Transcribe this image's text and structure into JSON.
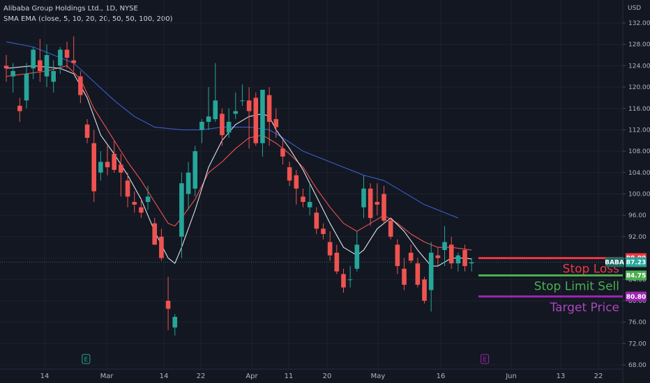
{
  "legend": {
    "symbol_line": "Alibaba Group Holdings Ltd., 1D, NYSE",
    "indicator_line": "SMA EMA (close, 5, 10, 20, 20, 50, 50, 100, 200)"
  },
  "currency": "USD",
  "chart_data": {
    "type": "candlestick",
    "title": "Alibaba Group Holdings Ltd., 1D, NYSE",
    "ylim": [
      68,
      136
    ],
    "y_ticks": [
      68,
      72,
      76,
      80,
      84,
      88,
      92,
      96,
      100,
      104,
      108,
      112,
      116,
      120,
      124,
      128,
      132
    ],
    "x_ticks": [
      {
        "label": "14",
        "date": "2022-02-14"
      },
      {
        "label": "Mar",
        "date": "2022-03-01"
      },
      {
        "label": "14",
        "date": "2022-03-14"
      },
      {
        "label": "22",
        "date": "2022-03-22"
      },
      {
        "label": "Apr",
        "date": "2022-04-01"
      },
      {
        "label": "11",
        "date": "2022-04-11"
      },
      {
        "label": "20",
        "date": "2022-04-20"
      },
      {
        "label": "May",
        "date": "2022-05-02"
      },
      {
        "label": "16",
        "date": "2022-05-16"
      },
      {
        "label": "Jun",
        "date": "2022-06-01"
      },
      {
        "label": "13",
        "date": "2022-06-13"
      },
      {
        "label": "22",
        "date": "2022-06-22"
      }
    ],
    "candles": [
      {
        "o": 124.0,
        "h": 126.0,
        "l": 121.0,
        "c": 123.5
      },
      {
        "o": 122.0,
        "h": 124.5,
        "l": 119.0,
        "c": 123.0
      },
      {
        "o": 116.5,
        "h": 118.0,
        "l": 113.5,
        "c": 115.5
      },
      {
        "o": 117.5,
        "h": 124.5,
        "l": 116.0,
        "c": 122.5
      },
      {
        "o": 123.5,
        "h": 127.5,
        "l": 121.5,
        "c": 127.0
      },
      {
        "o": 125.0,
        "h": 129.0,
        "l": 121.0,
        "c": 123.0
      },
      {
        "o": 122.0,
        "h": 128.0,
        "l": 120.0,
        "c": 126.0
      },
      {
        "o": 121.0,
        "h": 125.0,
        "l": 119.0,
        "c": 123.0
      },
      {
        "o": 124.0,
        "h": 127.5,
        "l": 122.5,
        "c": 127.0
      },
      {
        "o": 127.0,
        "h": 128.5,
        "l": 123.5,
        "c": 125.5
      },
      {
        "o": 125.0,
        "h": 129.5,
        "l": 123.0,
        "c": 124.5
      },
      {
        "o": 122.0,
        "h": 123.0,
        "l": 117.0,
        "c": 118.5
      },
      {
        "o": 113.0,
        "h": 114.0,
        "l": 109.5,
        "c": 110.5
      },
      {
        "o": 109.5,
        "h": 112.0,
        "l": 98.5,
        "c": 100.5
      },
      {
        "o": 104.0,
        "h": 108.0,
        "l": 102.5,
        "c": 106.0
      },
      {
        "o": 106.0,
        "h": 109.0,
        "l": 103.5,
        "c": 105.0
      },
      {
        "o": 107.5,
        "h": 110.0,
        "l": 104.0,
        "c": 104.5
      },
      {
        "o": 105.5,
        "h": 107.5,
        "l": 99.5,
        "c": 104.0
      },
      {
        "o": 102.5,
        "h": 104.0,
        "l": 97.5,
        "c": 99.5
      },
      {
        "o": 98.5,
        "h": 100.5,
        "l": 96.5,
        "c": 98.0
      },
      {
        "o": 97.5,
        "h": 99.0,
        "l": 95.5,
        "c": 96.5
      },
      {
        "o": 98.5,
        "h": 101.5,
        "l": 97.0,
        "c": 99.5
      },
      {
        "o": 94.5,
        "h": 95.5,
        "l": 90.5,
        "c": 90.5
      },
      {
        "o": 92.0,
        "h": 93.5,
        "l": 87.5,
        "c": 88.0
      },
      {
        "o": 80.0,
        "h": 84.5,
        "l": 74.5,
        "c": 78.5
      },
      {
        "o": 75.0,
        "h": 77.5,
        "l": 73.5,
        "c": 77.0
      },
      {
        "o": 92.0,
        "h": 104.0,
        "l": 88.0,
        "c": 102.0
      },
      {
        "o": 100.0,
        "h": 106.0,
        "l": 97.0,
        "c": 104.0
      },
      {
        "o": 101.0,
        "h": 109.0,
        "l": 99.5,
        "c": 108.0
      },
      {
        "o": 112.0,
        "h": 114.0,
        "l": 109.5,
        "c": 113.5
      },
      {
        "o": 113.5,
        "h": 120.0,
        "l": 112.0,
        "c": 114.5
      },
      {
        "o": 114.0,
        "h": 124.5,
        "l": 113.5,
        "c": 117.5
      },
      {
        "o": 115.0,
        "h": 116.0,
        "l": 109.0,
        "c": 111.0
      },
      {
        "o": 111.5,
        "h": 116.0,
        "l": 110.5,
        "c": 113.5
      },
      {
        "o": 115.0,
        "h": 119.0,
        "l": 114.0,
        "c": 115.5
      },
      {
        "o": 117.5,
        "h": 120.5,
        "l": 116.5,
        "c": 117.5
      },
      {
        "o": 117.5,
        "h": 120.0,
        "l": 108.5,
        "c": 115.5
      },
      {
        "o": 118.0,
        "h": 119.0,
        "l": 109.0,
        "c": 109.5
      },
      {
        "o": 109.5,
        "h": 119.0,
        "l": 107.0,
        "c": 119.5
      },
      {
        "o": 118.5,
        "h": 120.0,
        "l": 109.0,
        "c": 113.5
      },
      {
        "o": 114.0,
        "h": 116.0,
        "l": 110.5,
        "c": 112.5
      },
      {
        "o": 108.5,
        "h": 110.0,
        "l": 105.5,
        "c": 107.0
      },
      {
        "o": 105.0,
        "h": 106.0,
        "l": 101.5,
        "c": 102.5
      },
      {
        "o": 103.5,
        "h": 104.5,
        "l": 98.0,
        "c": 101.0
      },
      {
        "o": 99.5,
        "h": 101.0,
        "l": 97.5,
        "c": 98.5
      },
      {
        "o": 97.5,
        "h": 102.0,
        "l": 96.0,
        "c": 98.5
      },
      {
        "o": 96.5,
        "h": 97.5,
        "l": 92.5,
        "c": 93.5
      },
      {
        "o": 93.5,
        "h": 94.5,
        "l": 91.5,
        "c": 92.5
      },
      {
        "o": 91.0,
        "h": 93.0,
        "l": 87.5,
        "c": 88.5
      },
      {
        "o": 89.0,
        "h": 90.5,
        "l": 85.0,
        "c": 85.5
      },
      {
        "o": 85.0,
        "h": 86.0,
        "l": 81.5,
        "c": 82.5
      },
      {
        "o": 84.0,
        "h": 86.5,
        "l": 82.5,
        "c": 84.0
      },
      {
        "o": 86.0,
        "h": 93.0,
        "l": 85.5,
        "c": 90.5
      },
      {
        "o": 97.5,
        "h": 103.5,
        "l": 95.5,
        "c": 101.0
      },
      {
        "o": 101.0,
        "h": 102.0,
        "l": 94.0,
        "c": 95.5
      },
      {
        "o": 98.5,
        "h": 102.0,
        "l": 96.0,
        "c": 98.0
      },
      {
        "o": 100.0,
        "h": 101.5,
        "l": 94.5,
        "c": 95.0
      },
      {
        "o": 95.0,
        "h": 95.5,
        "l": 91.5,
        "c": 92.0
      },
      {
        "o": 90.5,
        "h": 91.5,
        "l": 85.0,
        "c": 86.5
      },
      {
        "o": 86.0,
        "h": 88.0,
        "l": 82.0,
        "c": 83.0
      },
      {
        "o": 89.0,
        "h": 90.5,
        "l": 87.0,
        "c": 87.5
      },
      {
        "o": 87.0,
        "h": 88.0,
        "l": 82.5,
        "c": 83.0
      },
      {
        "o": 84.0,
        "h": 84.5,
        "l": 79.5,
        "c": 80.0
      },
      {
        "o": 82.0,
        "h": 91.0,
        "l": 78.0,
        "c": 89.0
      },
      {
        "o": 88.5,
        "h": 90.0,
        "l": 86.5,
        "c": 88.0
      },
      {
        "o": 89.5,
        "h": 94.0,
        "l": 86.5,
        "c": 91.0
      },
      {
        "o": 90.5,
        "h": 92.0,
        "l": 86.0,
        "c": 87.0
      },
      {
        "o": 87.0,
        "h": 89.0,
        "l": 85.5,
        "c": 88.5
      },
      {
        "o": 89.5,
        "h": 90.5,
        "l": 85.5,
        "c": 86.5
      },
      {
        "o": 87.0,
        "h": 88.0,
        "l": 85.5,
        "c": 87.2
      }
    ],
    "ma_white": [
      [
        0,
        123.5
      ],
      [
        4,
        124
      ],
      [
        8,
        123.5
      ],
      [
        10,
        122.5
      ],
      [
        12,
        118
      ],
      [
        14,
        111
      ],
      [
        16,
        107.5
      ],
      [
        18,
        103.5
      ],
      [
        20,
        99
      ],
      [
        22,
        93
      ],
      [
        24,
        88
      ],
      [
        25,
        87
      ],
      [
        26,
        90
      ],
      [
        28,
        97
      ],
      [
        30,
        105
      ],
      [
        32,
        110
      ],
      [
        34,
        113
      ],
      [
        36,
        114.5
      ],
      [
        38,
        115
      ],
      [
        39,
        114.5
      ],
      [
        40,
        112
      ],
      [
        42,
        108.5
      ],
      [
        44,
        104.5
      ],
      [
        46,
        99.5
      ],
      [
        48,
        94.5
      ],
      [
        50,
        90
      ],
      [
        52,
        88.5
      ],
      [
        53,
        89.5
      ],
      [
        55,
        93.5
      ],
      [
        57,
        95.5
      ],
      [
        59,
        93
      ],
      [
        61,
        89.5
      ],
      [
        63,
        86.5
      ],
      [
        64,
        86.5
      ],
      [
        66,
        88
      ],
      [
        68,
        88
      ],
      [
        69,
        87.8
      ]
    ],
    "ma_red": [
      [
        0,
        122
      ],
      [
        6,
        123
      ],
      [
        9,
        124
      ],
      [
        11,
        121.5
      ],
      [
        13,
        116
      ],
      [
        15,
        112
      ],
      [
        18,
        106
      ],
      [
        20,
        102.5
      ],
      [
        22,
        98.5
      ],
      [
        24,
        94.5
      ],
      [
        25,
        94
      ],
      [
        26,
        95.5
      ],
      [
        28,
        99
      ],
      [
        30,
        104
      ],
      [
        32,
        106
      ],
      [
        34,
        108.5
      ],
      [
        36,
        110.5
      ],
      [
        38,
        111
      ],
      [
        40,
        109.5
      ],
      [
        42,
        107.5
      ],
      [
        44,
        105
      ],
      [
        46,
        101
      ],
      [
        48,
        97.5
      ],
      [
        50,
        94.5
      ],
      [
        52,
        93
      ],
      [
        54,
        94.5
      ],
      [
        56,
        96
      ],
      [
        58,
        94.5
      ],
      [
        60,
        92.5
      ],
      [
        62,
        91
      ],
      [
        64,
        90
      ],
      [
        66,
        90
      ],
      [
        69,
        89.5
      ]
    ],
    "ma_blue": [
      [
        0,
        128.5
      ],
      [
        4,
        127.5
      ],
      [
        8,
        125.5
      ],
      [
        10,
        124.5
      ],
      [
        13,
        121
      ],
      [
        16,
        117.5
      ],
      [
        19,
        114.5
      ],
      [
        22,
        112.5
      ],
      [
        26,
        112
      ],
      [
        29,
        112
      ],
      [
        32,
        112.5
      ],
      [
        36,
        112.5
      ],
      [
        39,
        112
      ],
      [
        41,
        110.5
      ],
      [
        44,
        108
      ],
      [
        47,
        106.5
      ],
      [
        50,
        105
      ],
      [
        53,
        103.5
      ],
      [
        56,
        102.5
      ],
      [
        58,
        101
      ],
      [
        60,
        99.5
      ],
      [
        62,
        98
      ],
      [
        64,
        97
      ],
      [
        66,
        96
      ],
      [
        67,
        95.5
      ]
    ],
    "colors": {
      "up": "#26a69a",
      "down": "#ef5350",
      "ma_white": "#e0e3eb",
      "ma_red": "#ef5350",
      "ma_blue": "#3a5fcd"
    },
    "levels": [
      {
        "name": "stop-loss",
        "label": "Stop Loss",
        "value": 88.0,
        "badge": "88.00",
        "color": "#f23645",
        "label_color": "#f23645"
      },
      {
        "name": "stop-limit-sell",
        "label": "Stop Limit Sell",
        "value": 84.75,
        "badge": "84.75",
        "color": "#4caf50",
        "label_color": "#4caf50"
      },
      {
        "name": "target-price",
        "label": "Target Price",
        "value": 80.8,
        "badge": "80.80",
        "color": "#9c27b0",
        "label_color": "#ab47bc"
      }
    ],
    "last_price": {
      "symbol": "BABA",
      "value": 87.23,
      "badge": "87.23",
      "color": "#26a69a"
    },
    "earnings_markers": [
      {
        "label": "E",
        "date": "2022-02-24",
        "color": "#26a69a"
      },
      {
        "label": "E",
        "date": "2022-05-26",
        "color": "#9c27b0"
      }
    ]
  }
}
